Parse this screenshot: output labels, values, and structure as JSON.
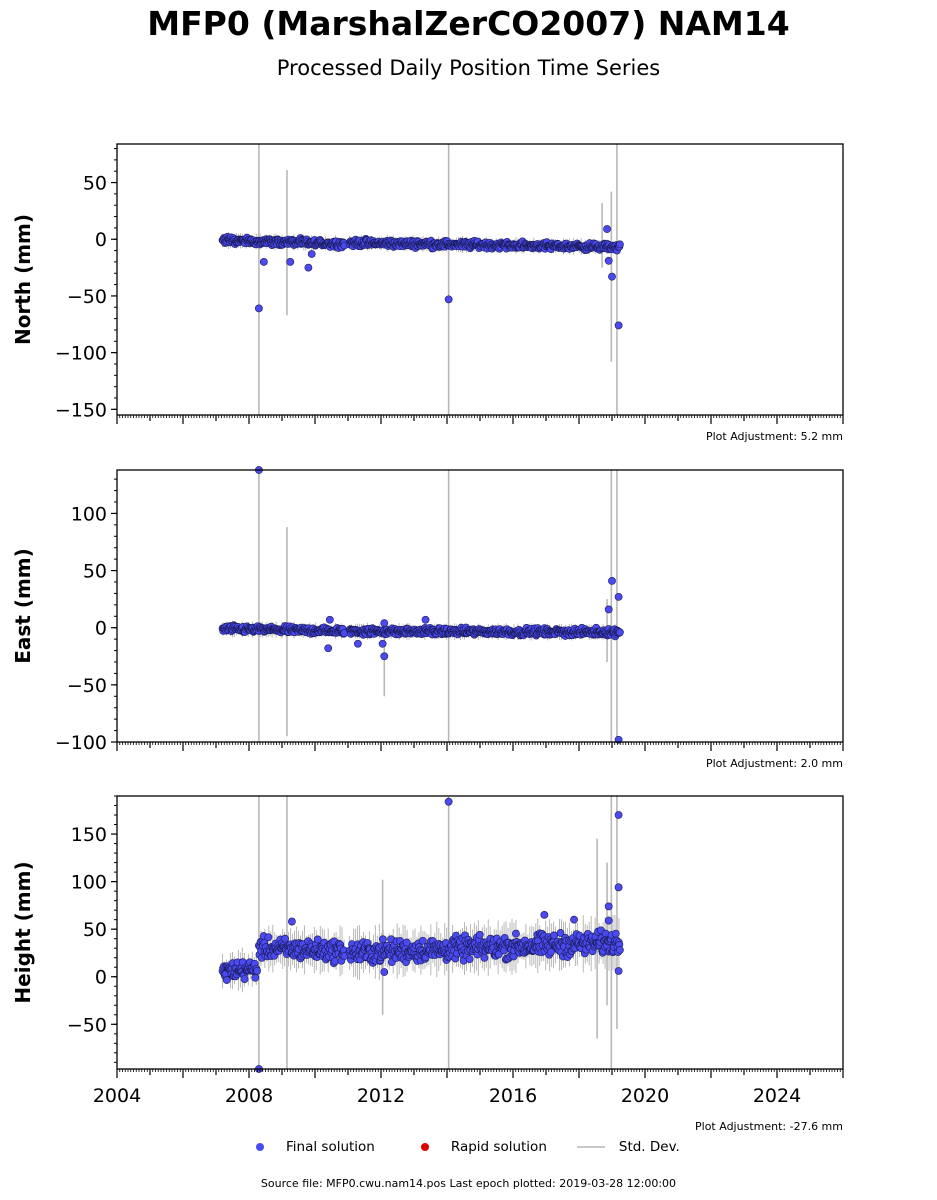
{
  "title": "MFP0 (MarshalZerCO2007) NAM14",
  "subtitle": "Processed Daily Position Time Series",
  "legend": {
    "final": "Final solution",
    "rapid": "Rapid solution",
    "std": "Std. Dev."
  },
  "source_text": "Source file: MFP0.cwu.nam14.pos  Last epoch plotted: 2019-03-28 12:00:00",
  "colors": {
    "final": "#4a4af0",
    "final_edge": "#1a1a55",
    "rapid": "#dd0000",
    "std": "#b8b8b8"
  },
  "chart_data": [
    {
      "type": "scatter",
      "ylabel": "North (mm)",
      "ylim": [
        -155,
        84
      ],
      "yticks": [
        50,
        0,
        -50,
        -100,
        -150
      ],
      "xlim": [
        2004,
        2026
      ],
      "adjustment": "Plot Adjustment: 5.2 mm",
      "series": [
        {
          "name": "Final solution",
          "cluster": [
            {
              "x_start": 2007.2,
              "x_end": 2010.9,
              "y_start": -1,
              "y_end": -4,
              "scatter": 2.5
            },
            {
              "x_start": 2011.05,
              "x_end": 2019.25,
              "y_start": -3,
              "y_end": -7,
              "scatter": 2.5
            }
          ],
          "outliers": [
            {
              "x": 2008.3,
              "y": -61
            },
            {
              "x": 2008.45,
              "y": -20
            },
            {
              "x": 2009.25,
              "y": -20
            },
            {
              "x": 2009.8,
              "y": -25
            },
            {
              "x": 2009.9,
              "y": -13
            },
            {
              "x": 2014.05,
              "y": -53
            },
            {
              "x": 2018.85,
              "y": 9
            },
            {
              "x": 2018.9,
              "y": -19
            },
            {
              "x": 2019.0,
              "y": -33
            },
            {
              "x": 2019.2,
              "y": -76
            }
          ]
        }
      ],
      "std_dev": [
        {
          "x": 2008.3,
          "low": -155,
          "high": 84
        },
        {
          "x": 2009.15,
          "low": -67,
          "high": 61
        },
        {
          "x": 2014.05,
          "low": -155,
          "high": 84
        },
        {
          "x": 2018.7,
          "low": -25,
          "high": 32
        },
        {
          "x": 2018.98,
          "low": -108,
          "high": 42
        },
        {
          "x": 2019.15,
          "low": -155,
          "high": 84
        }
      ]
    },
    {
      "type": "scatter",
      "ylabel": "East (mm)",
      "ylim": [
        -100,
        138
      ],
      "yticks": [
        100,
        50,
        0,
        -50,
        -100
      ],
      "xlim": [
        2004,
        2026
      ],
      "adjustment": "Plot Adjustment: 2.0 mm",
      "series": [
        {
          "name": "Final solution",
          "cluster": [
            {
              "x_start": 2007.2,
              "x_end": 2010.9,
              "y_start": -1,
              "y_end": -3,
              "scatter": 2.5
            },
            {
              "x_start": 2011.05,
              "x_end": 2019.25,
              "y_start": -3,
              "y_end": -4,
              "scatter": 2.5
            }
          ],
          "outliers": [
            {
              "x": 2008.3,
              "y": 138
            },
            {
              "x": 2010.4,
              "y": -18
            },
            {
              "x": 2010.45,
              "y": 7
            },
            {
              "x": 2011.3,
              "y": -14
            },
            {
              "x": 2012.1,
              "y": -25
            },
            {
              "x": 2012.05,
              "y": -14
            },
            {
              "x": 2012.1,
              "y": 4
            },
            {
              "x": 2013.35,
              "y": 7
            },
            {
              "x": 2018.9,
              "y": 16
            },
            {
              "x": 2019.0,
              "y": 41
            },
            {
              "x": 2019.2,
              "y": 27
            },
            {
              "x": 2019.2,
              "y": -98
            }
          ]
        }
      ],
      "std_dev": [
        {
          "x": 2008.3,
          "low": -100,
          "high": 138
        },
        {
          "x": 2009.15,
          "low": -95,
          "high": 88
        },
        {
          "x": 2012.1,
          "low": -60,
          "high": 5
        },
        {
          "x": 2014.05,
          "low": -100,
          "high": 138
        },
        {
          "x": 2018.85,
          "low": -30,
          "high": 25
        },
        {
          "x": 2018.98,
          "low": -100,
          "high": 138
        },
        {
          "x": 2019.15,
          "low": -100,
          "high": 138
        }
      ]
    },
    {
      "type": "scatter",
      "ylabel": "Height (mm)",
      "ylim": [
        -97,
        190
      ],
      "yticks": [
        150,
        100,
        50,
        0,
        -50
      ],
      "xlim": [
        2004,
        2026
      ],
      "adjustment": "Plot Adjustment: -27.6 mm",
      "series": [
        {
          "name": "Final solution",
          "cluster": [
            {
              "x_start": 2007.2,
              "x_end": 2008.25,
              "y_start": 6,
              "y_end": 8,
              "scatter": 8
            },
            {
              "x_start": 2008.3,
              "x_end": 2010.9,
              "y_start": 30,
              "y_end": 27,
              "scatter": 9
            },
            {
              "x_start": 2011.05,
              "x_end": 2019.25,
              "y_start": 25,
              "y_end": 36,
              "scatter": 10
            }
          ],
          "outliers": [
            {
              "x": 2008.3,
              "y": -97
            },
            {
              "x": 2009.3,
              "y": 58
            },
            {
              "x": 2012.1,
              "y": 5
            },
            {
              "x": 2014.05,
              "y": 184
            },
            {
              "x": 2016.95,
              "y": 65
            },
            {
              "x": 2017.85,
              "y": 60
            },
            {
              "x": 2018.9,
              "y": 74
            },
            {
              "x": 2018.9,
              "y": 59
            },
            {
              "x": 2019.2,
              "y": 170
            },
            {
              "x": 2019.2,
              "y": 94
            },
            {
              "x": 2019.2,
              "y": 6
            }
          ]
        }
      ],
      "std_dev": [
        {
          "x": 2008.3,
          "low": -97,
          "high": 190
        },
        {
          "x": 2009.15,
          "low": -97,
          "high": 190
        },
        {
          "x": 2012.05,
          "low": -40,
          "high": 102
        },
        {
          "x": 2014.05,
          "low": -97,
          "high": 190
        },
        {
          "x": 2018.55,
          "low": -65,
          "high": 145
        },
        {
          "x": 2018.85,
          "low": -30,
          "high": 120
        },
        {
          "x": 2018.98,
          "low": -97,
          "high": 190
        },
        {
          "x": 2019.15,
          "low": -55,
          "high": 190
        }
      ]
    }
  ],
  "x_tick_labels": [
    "2004",
    "2008",
    "2012",
    "2016",
    "2020",
    "2024"
  ]
}
